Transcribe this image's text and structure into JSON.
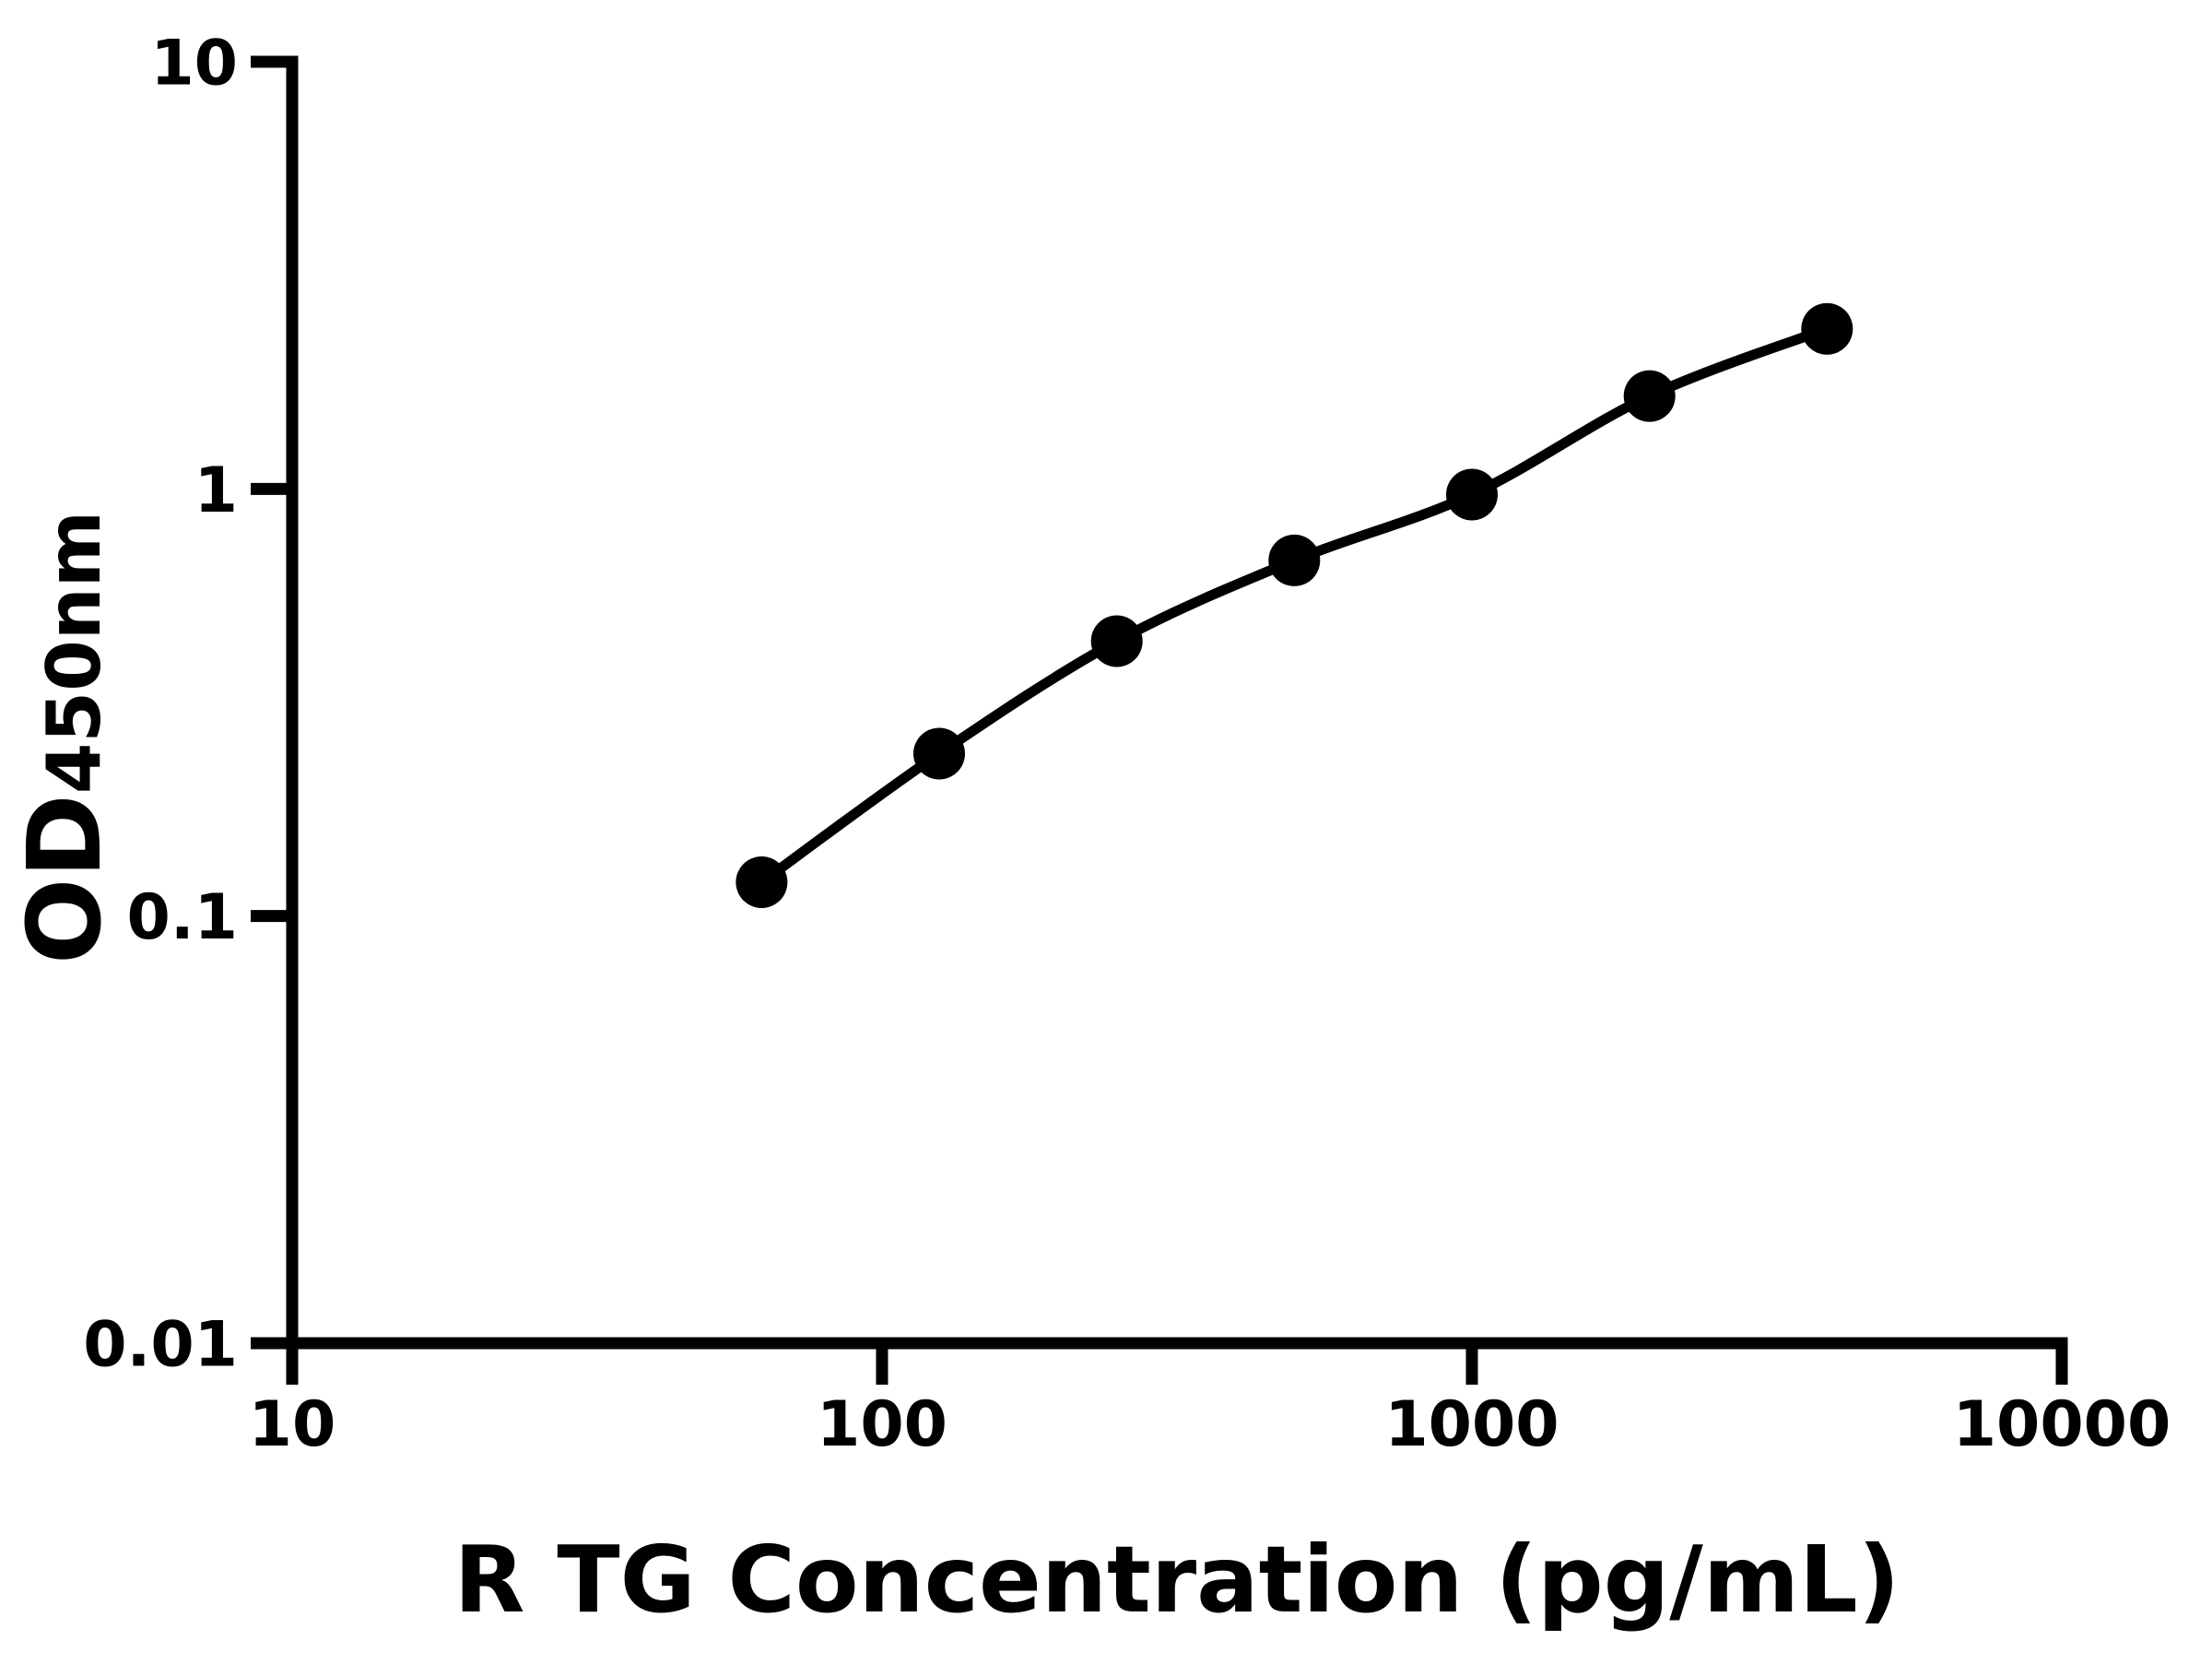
{
  "figure": {
    "background": "#ffffff",
    "foreground": "#000000"
  },
  "chart_data": {
    "type": "scatter",
    "title": "",
    "xlabel": "R TG Concentration (pg/mL)",
    "ylabel": {
      "main": "OD",
      "subscript": "450nm"
    },
    "xscale": "log",
    "yscale": "log",
    "xlim": [
      10,
      10000
    ],
    "ylim": [
      0.01,
      10
    ],
    "grid": false,
    "legend_position": "none",
    "xticks": {
      "values": [
        10,
        100,
        1000,
        10000
      ],
      "labels": [
        "10",
        "100",
        "1000",
        "10000"
      ]
    },
    "yticks": {
      "values": [
        0.01,
        0.1,
        1,
        10
      ],
      "labels": [
        "0.01",
        "0.1",
        "1",
        "10"
      ]
    },
    "series": [
      {
        "marker": "circle",
        "color": "#000000",
        "line": "smooth",
        "points": [
          {
            "x": 62.5,
            "y": 0.12
          },
          {
            "x": 125,
            "y": 0.24
          },
          {
            "x": 250,
            "y": 0.44
          },
          {
            "x": 500,
            "y": 0.68
          },
          {
            "x": 1000,
            "y": 0.97
          },
          {
            "x": 2000,
            "y": 1.65
          },
          {
            "x": 4000,
            "y": 2.37
          }
        ]
      }
    ]
  }
}
